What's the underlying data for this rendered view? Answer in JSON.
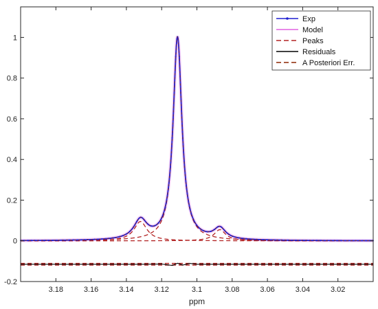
{
  "chart_data": {
    "type": "line",
    "title": "",
    "xlabel": "ppm",
    "ylabel": "",
    "xlim": [
      3.2,
      3.0
    ],
    "ylim": [
      -0.2,
      1.15
    ],
    "x_reversed": true,
    "x_ticks": [
      3.18,
      3.16,
      3.14,
      3.12,
      3.1,
      3.08,
      3.06,
      3.04,
      3.02
    ],
    "x_tick_labels": [
      "3.18",
      "3.16",
      "3.14",
      "3.12",
      "3.1",
      "3.08",
      "3.06",
      "3.04",
      "3.02"
    ],
    "y_ticks": [
      -0.2,
      0,
      0.2,
      0.4,
      0.6,
      0.8,
      1
    ],
    "y_tick_labels": [
      "-0.2",
      "0",
      "0.2",
      "0.4",
      "0.6",
      "0.8",
      "1"
    ],
    "grid": false,
    "legend": {
      "placement": "top-right",
      "entries": [
        {
          "label": "Exp",
          "color": "#1f1fd0",
          "style": "solid-marker"
        },
        {
          "label": "Model",
          "color": "#e060e0",
          "style": "solid"
        },
        {
          "label": "Peaks",
          "color": "#b22222",
          "style": "dashed"
        },
        {
          "label": "Residuals",
          "color": "#000000",
          "style": "solid"
        },
        {
          "label": "A Posteriori Err.",
          "color": "#8b2500",
          "style": "dashed"
        }
      ]
    },
    "peaks": [
      {
        "center": 3.111,
        "height": 1.0,
        "width": 0.003
      },
      {
        "center": 3.132,
        "height": 0.095,
        "width": 0.0045
      },
      {
        "center": 3.087,
        "height": 0.055,
        "width": 0.004
      }
    ],
    "residual_offset": -0.115,
    "residual_points": {
      "x": [
        3.2,
        3.13,
        3.12,
        3.114,
        3.111,
        3.108,
        3.104,
        3.1,
        3.09,
        3.0
      ],
      "y": [
        0,
        0,
        0.001,
        -0.006,
        0.005,
        -0.004,
        0.004,
        0,
        0,
        0
      ]
    }
  }
}
